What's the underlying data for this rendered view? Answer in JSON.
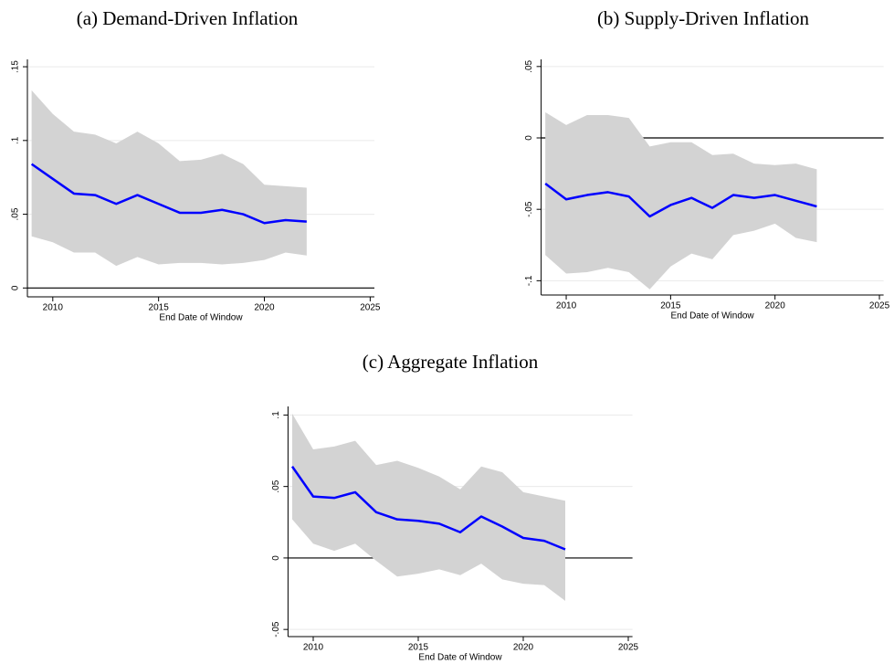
{
  "chart_data": [
    {
      "type": "line",
      "title": "(a) Demand-Driven Inflation",
      "xlabel": "End Date of Window",
      "x": [
        2009,
        2010,
        2011,
        2012,
        2013,
        2014,
        2015,
        2016,
        2017,
        2018,
        2019,
        2020,
        2021,
        2022
      ],
      "series": [
        {
          "color": "#0000ff",
          "values": [
            0.084,
            0.074,
            0.064,
            0.063,
            0.057,
            0.063,
            0.057,
            0.051,
            0.051,
            0.053,
            0.05,
            0.044,
            0.046,
            0.045
          ]
        }
      ],
      "band": {
        "color": "#d3d3d3",
        "upper": [
          0.134,
          0.118,
          0.106,
          0.104,
          0.098,
          0.106,
          0.098,
          0.086,
          0.087,
          0.091,
          0.084,
          0.07,
          0.069,
          0.068
        ],
        "lower": [
          0.035,
          0.031,
          0.024,
          0.024,
          0.015,
          0.021,
          0.016,
          0.017,
          0.017,
          0.016,
          0.017,
          0.019,
          0.024,
          0.022
        ]
      },
      "hline": 0,
      "grid": true,
      "xlim": [
        2008.8,
        2025.2
      ],
      "xticks": [
        2010,
        2015,
        2020,
        2025
      ],
      "ylim": [
        -0.006,
        0.155
      ],
      "yticks": [
        0,
        {
          "value": 0.05,
          "label": ".05"
        },
        {
          "value": 0.1,
          "label": ".1"
        },
        {
          "value": 0.15,
          "label": ".15"
        }
      ]
    },
    {
      "type": "line",
      "title": "(b) Supply-Driven Inflation",
      "xlabel": "End Date of Window",
      "x": [
        2009,
        2010,
        2011,
        2012,
        2013,
        2014,
        2015,
        2016,
        2017,
        2018,
        2019,
        2020,
        2021,
        2022
      ],
      "series": [
        {
          "color": "#0000ff",
          "values": [
            -0.032,
            -0.043,
            -0.04,
            -0.038,
            -0.041,
            -0.055,
            -0.047,
            -0.042,
            -0.049,
            -0.04,
            -0.042,
            -0.04,
            -0.044,
            -0.048
          ]
        }
      ],
      "band": {
        "color": "#d3d3d3",
        "upper": [
          0.018,
          0.009,
          0.016,
          0.016,
          0.014,
          -0.006,
          -0.003,
          -0.003,
          -0.012,
          -0.011,
          -0.018,
          -0.019,
          -0.018,
          -0.022
        ],
        "lower": [
          -0.082,
          -0.095,
          -0.094,
          -0.091,
          -0.094,
          -0.106,
          -0.09,
          -0.081,
          -0.085,
          -0.068,
          -0.065,
          -0.06,
          -0.07,
          -0.073
        ]
      },
      "hline": 0,
      "grid": true,
      "xlim": [
        2008.8,
        2025.2
      ],
      "xticks": [
        2010,
        2015,
        2020,
        2025
      ],
      "ylim": [
        -0.11,
        0.055
      ],
      "yticks": [
        {
          "value": -0.1,
          "label": "-.1"
        },
        {
          "value": -0.05,
          "label": "-.05"
        },
        0,
        {
          "value": 0.05,
          "label": ".05"
        }
      ]
    },
    {
      "type": "line",
      "title": "(c) Aggregate Inflation",
      "xlabel": "End Date of Window",
      "x": [
        2009,
        2010,
        2011,
        2012,
        2013,
        2014,
        2015,
        2016,
        2017,
        2018,
        2019,
        2020,
        2021,
        2022
      ],
      "series": [
        {
          "color": "#0000ff",
          "values": [
            0.064,
            0.043,
            0.042,
            0.046,
            0.032,
            0.027,
            0.026,
            0.024,
            0.018,
            0.029,
            0.022,
            0.014,
            0.012,
            0.006
          ]
        }
      ],
      "band": {
        "color": "#d3d3d3",
        "upper": [
          0.101,
          0.076,
          0.078,
          0.082,
          0.065,
          0.068,
          0.063,
          0.057,
          0.048,
          0.064,
          0.06,
          0.046,
          0.043,
          0.04
        ],
        "lower": [
          0.027,
          0.01,
          0.005,
          0.01,
          -0.002,
          -0.013,
          -0.011,
          -0.008,
          -0.012,
          -0.004,
          -0.015,
          -0.018,
          -0.019,
          -0.03
        ]
      },
      "hline": 0,
      "grid": true,
      "xlim": [
        2008.8,
        2025.2
      ],
      "xticks": [
        2010,
        2015,
        2020,
        2025
      ],
      "ylim": [
        -0.055,
        0.106
      ],
      "yticks": [
        {
          "value": -0.05,
          "label": "-.05"
        },
        0,
        {
          "value": 0.05,
          "label": ".05"
        },
        {
          "value": 0.1,
          "label": ".1"
        }
      ]
    }
  ]
}
